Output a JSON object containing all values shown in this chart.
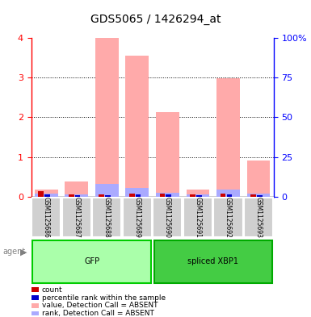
{
  "title": "GDS5065 / 1426294_at",
  "samples": [
    "GSM1125686",
    "GSM1125687",
    "GSM1125688",
    "GSM1125689",
    "GSM1125690",
    "GSM1125691",
    "GSM1125692",
    "GSM1125693"
  ],
  "groups": [
    {
      "name": "GFP",
      "samples": [
        0,
        1,
        2,
        3
      ],
      "color": "#aaffaa",
      "border_color": "#00cc00"
    },
    {
      "name": "spliced XBP1",
      "samples": [
        4,
        5,
        6,
        7
      ],
      "color": "#44cc44",
      "border_color": "#00aa00"
    }
  ],
  "value_absent": [
    0.18,
    0.38,
    4.0,
    3.55,
    2.13,
    0.17,
    2.98,
    0.9
  ],
  "rank_absent": [
    0.07,
    0.05,
    0.32,
    0.22,
    0.1,
    0.06,
    0.18,
    0.07
  ],
  "count_values": [
    0.13,
    0.05,
    0.05,
    0.08,
    0.08,
    0.05,
    0.08,
    0.05
  ],
  "rank_values": [
    0.05,
    0.04,
    0.04,
    0.06,
    0.06,
    0.04,
    0.06,
    0.04
  ],
  "ylim": [
    0,
    4
  ],
  "yticks": [
    0,
    1,
    2,
    3,
    4
  ],
  "ytick_labels_left": [
    "0",
    "1",
    "2",
    "3",
    "4"
  ],
  "ytick_labels_right": [
    "0",
    "25",
    "50",
    "75",
    "100%"
  ],
  "color_count": "#cc0000",
  "color_rank": "#0000cc",
  "color_value_absent": "#ffaaaa",
  "color_rank_absent": "#aaaaff",
  "bar_width": 0.35,
  "background_color": "#ffffff",
  "plot_bg_color": "#ffffff",
  "agent_label": "agent",
  "legend_items": [
    {
      "color": "#cc0000",
      "label": "count"
    },
    {
      "color": "#0000cc",
      "label": "percentile rank within the sample"
    },
    {
      "color": "#ffaaaa",
      "label": "value, Detection Call = ABSENT"
    },
    {
      "color": "#aaaaff",
      "label": "rank, Detection Call = ABSENT"
    }
  ]
}
